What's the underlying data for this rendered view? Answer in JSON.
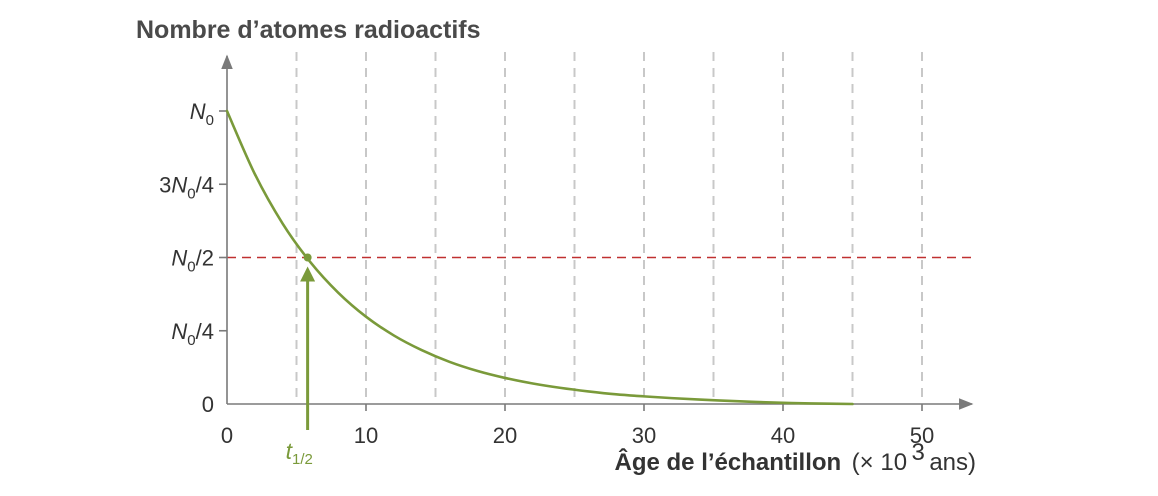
{
  "chart_data": {
    "type": "line",
    "ylabel": "Nombre d’atomes radioactifs",
    "xlabel": {
      "bold": "Âge de l’échantillon",
      "unit_open": "(× 10",
      "unit_exp": "3",
      "unit_close": " ans)"
    },
    "xlim": [
      0,
      54
    ],
    "ylim": [
      0,
      1.15
    ],
    "x_ticks": [
      0,
      10,
      20,
      30,
      40,
      50
    ],
    "x_tick_labels": [
      "0",
      "10",
      "20",
      "30",
      "40",
      "50"
    ],
    "x_gridlines": [
      5,
      10,
      15,
      20,
      25,
      30,
      35,
      40,
      45,
      50
    ],
    "y_ticks": [
      {
        "value": 1.0,
        "parts": [
          {
            "t": "N",
            "s": "i"
          },
          {
            "t": "0",
            "s": "sub"
          }
        ]
      },
      {
        "value": 0.75,
        "parts": [
          {
            "t": "3",
            "s": "n"
          },
          {
            "t": "N",
            "s": "i"
          },
          {
            "t": "0",
            "s": "sub"
          },
          {
            "t": "/4",
            "s": "n"
          }
        ]
      },
      {
        "value": 0.5,
        "parts": [
          {
            "t": "N",
            "s": "i"
          },
          {
            "t": "0",
            "s": "sub"
          },
          {
            "t": "/2",
            "s": "n"
          }
        ]
      },
      {
        "value": 0.25,
        "parts": [
          {
            "t": "N",
            "s": "i"
          },
          {
            "t": "0",
            "s": "sub"
          },
          {
            "t": "/4",
            "s": "n"
          }
        ]
      },
      {
        "value": 0,
        "parts": [
          {
            "t": "0",
            "s": "n"
          }
        ]
      }
    ],
    "series": [
      {
        "color": "#7a9a3a",
        "x": [
          0,
          2,
          4,
          6,
          8,
          10,
          12,
          14,
          16,
          18,
          20,
          22,
          24,
          26,
          28,
          30,
          32,
          34,
          36,
          38,
          40,
          42,
          45
        ],
        "y": [
          1.0,
          0.785,
          0.616,
          0.484,
          0.38,
          0.298,
          0.234,
          0.184,
          0.144,
          0.113,
          0.089,
          0.07,
          0.055,
          0.043,
          0.033,
          0.026,
          0.02,
          0.015,
          0.011,
          0.007,
          0.004,
          0.002,
          0.0
        ]
      }
    ],
    "half_life": {
      "x": 5.8,
      "y": 0.5,
      "label_main": "t",
      "label_sub": "1/2",
      "line_color": "#c03030"
    },
    "grid_color": "#c8c8c8",
    "axis_color": "#7a7a7a"
  }
}
